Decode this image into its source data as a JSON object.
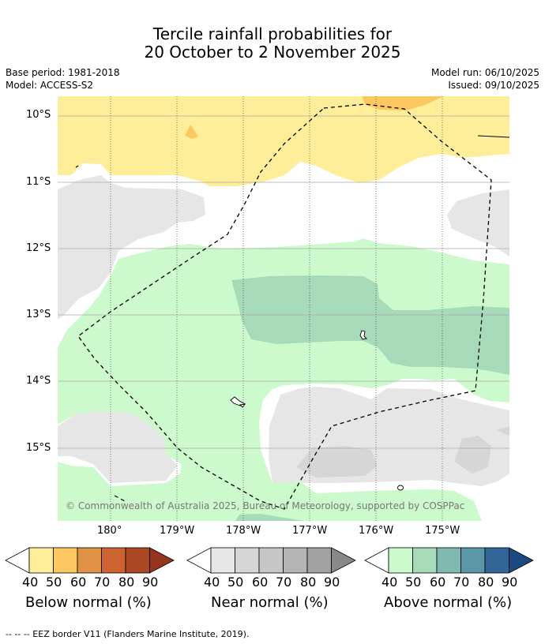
{
  "header": {
    "title_line1": "Tercile rainfall probabilities for",
    "title_line2": "20 October to 2 November 2025",
    "base_period": "Base period: 1981-2018",
    "model": "Model: ACCESS-S2",
    "model_run": "Model run: 06/10/2025",
    "issued": "Issued: 09/10/2025"
  },
  "map": {
    "lat_labels": [
      "10°S",
      "11°S",
      "12°S",
      "13°S",
      "14°S",
      "15°S"
    ],
    "lon_labels": [
      "180°",
      "179°W",
      "178°W",
      "177°W",
      "176°W",
      "175°W"
    ],
    "copyright": "© Commonwealth of Australia 2025, Bureau of Meteorology, supported by COSPPac"
  },
  "legends": {
    "below": {
      "title": "Below normal (%)",
      "ticks": [
        "40",
        "50",
        "60",
        "70",
        "80",
        "90"
      ],
      "colors": [
        "#ffee99",
        "#fdc761",
        "#e09246",
        "#cd6330",
        "#ac4724",
        "#96351d"
      ]
    },
    "near": {
      "title": "Near normal (%)",
      "ticks": [
        "40",
        "50",
        "60",
        "70",
        "80",
        "90"
      ],
      "colors": [
        "#e6e6e6",
        "#d6d6d6",
        "#c6c6c6",
        "#b4b4b4",
        "#a2a2a2",
        "#888888"
      ]
    },
    "above": {
      "title": "Above normal (%)",
      "ticks": [
        "40",
        "50",
        "60",
        "70",
        "80",
        "90"
      ],
      "colors": [
        "#ccfacc",
        "#a6dab9",
        "#80b9b1",
        "#5a96a6",
        "#326598",
        "#1c4a80"
      ]
    }
  },
  "footnote": "--  --  -- EEZ border V11 (Flanders Marine Institute, 2019)."
}
